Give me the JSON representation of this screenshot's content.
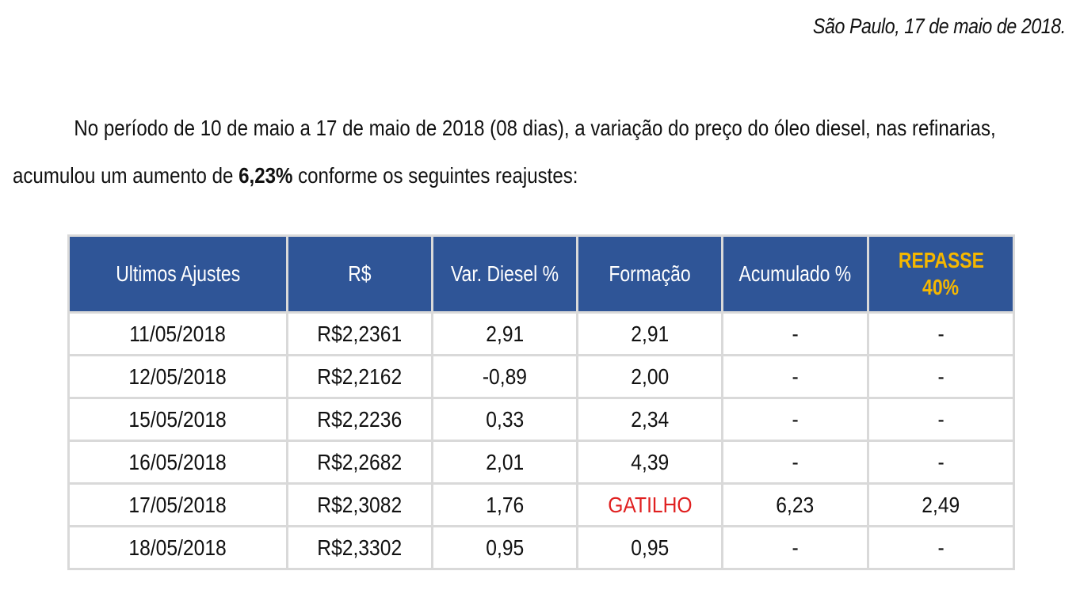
{
  "header": {
    "date_line": "São Paulo, 17 de maio de 2018."
  },
  "paragraph": {
    "line1": "No período de 10 de maio a 17 de maio de 2018 (08 dias), a variação do preço do óleo diesel, nas refinarias,",
    "line2_prefix": "acumulou um aumento de ",
    "line2_bold": "6,23%",
    "line2_suffix": " conforme os seguintes reajustes:"
  },
  "table": {
    "columns": [
      "Ultimos Ajustes",
      "R$",
      "Var. Diesel %",
      "Formação",
      "Acumulado %"
    ],
    "repasse_line1": "REPASSE",
    "repasse_line2": "40%",
    "rows": [
      [
        "11/05/2018",
        "R$2,2361",
        "2,91",
        "2,91",
        "-",
        "-"
      ],
      [
        "12/05/2018",
        "R$2,2162",
        "-0,89",
        "2,00",
        "-",
        "-"
      ],
      [
        "15/05/2018",
        "R$2,2236",
        "0,33",
        "2,34",
        "-",
        "-"
      ],
      [
        "16/05/2018",
        "R$2,2682",
        "2,01",
        "4,39",
        "-",
        "-"
      ],
      [
        "17/05/2018",
        "R$2,3082",
        "1,76",
        "GATILHO",
        "6,23",
        "2,49"
      ],
      [
        "18/05/2018",
        "R$2,3302",
        "0,95",
        "0,95",
        "-",
        "-"
      ]
    ]
  },
  "colors": {
    "header_bg": "#2f5597",
    "header_text": "#ffffff",
    "repasse_text": "#f5b700",
    "trigger_text": "#e02020"
  }
}
